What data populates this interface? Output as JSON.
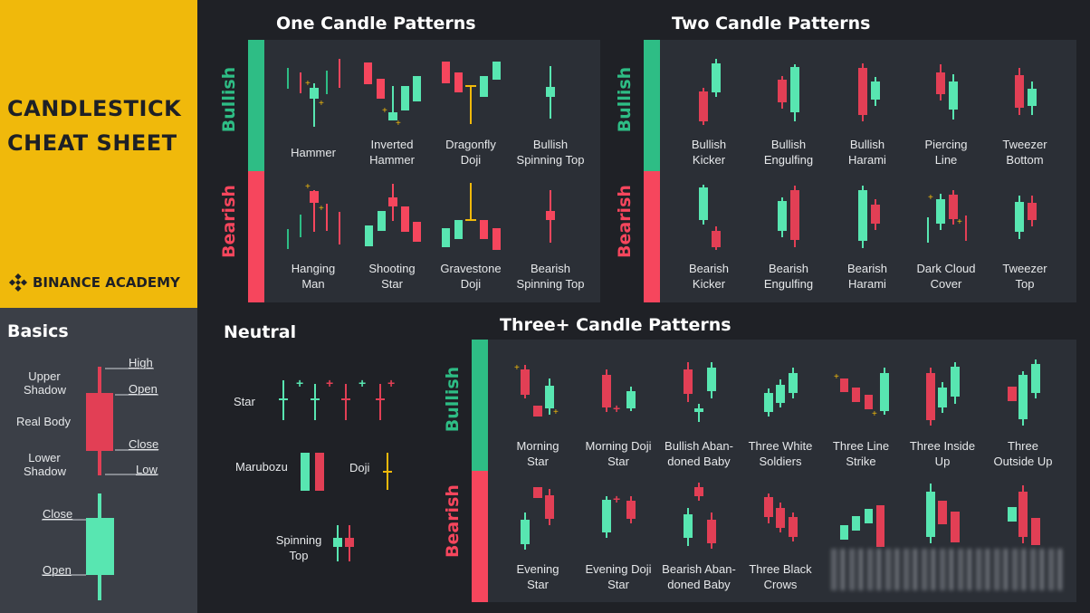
{
  "header": {
    "title_line1": "CANDLESTICK",
    "title_line2": "CHEAT SHEET",
    "brand": "BINANCE ACADEMY",
    "brand_icon": "binance-diamond-icon"
  },
  "colors": {
    "bull": "#2ebd85",
    "bear": "#f6465d",
    "accent": "#f0b90b",
    "bull_light": "#58e6b1",
    "bear_light": "#e23f55"
  },
  "basics": {
    "title": "Basics",
    "bearish_labels": {
      "upper_shadow": "Upper\nShadow",
      "real_body": "Real Body",
      "lower_shadow": "Lower\nShadow",
      "high": "High",
      "open": "Open",
      "close": "Close",
      "low": "Low"
    },
    "bullish_labels": {
      "close": "Close",
      "open": "Open"
    }
  },
  "one_candle": {
    "title": "One Candle Patterns",
    "bullish_label": "Bullish",
    "bearish_label": "Bearish",
    "bullish": [
      "Hammer",
      "Inverted\nHammer",
      "Dragonfly\nDoji",
      "Bullish\nSpinning Top"
    ],
    "bearish": [
      "Hanging\nMan",
      "Shooting\nStar",
      "Gravestone\nDoji",
      "Bearish\nSpinning Top"
    ]
  },
  "two_candle": {
    "title": "Two Candle Patterns",
    "bullish_label": "Bullish",
    "bearish_label": "Bearish",
    "bullish": [
      "Bullish\nKicker",
      "Bullish\nEngulfing",
      "Bullish\nHarami",
      "Piercing\nLine",
      "Tweezer\nBottom"
    ],
    "bearish": [
      "Bearish\nKicker",
      "Bearish\nEngulfing",
      "Bearish\nHarami",
      "Dark Cloud\nCover",
      "Tweezer\nTop"
    ]
  },
  "neutral": {
    "title": "Neutral",
    "items": {
      "star": "Star",
      "marubozu": "Marubozu",
      "doji": "Doji",
      "spinning_top": "Spinning\nTop"
    }
  },
  "three_candle": {
    "title": "Three+ Candle Patterns",
    "bullish_label": "Bullish",
    "bearish_label": "Bearish",
    "bullish": [
      "Morning\nStar",
      "Morning Doji\nStar",
      "Bullish Aban-\ndoned Baby",
      "Three White\nSoldiers",
      "Three Line\nStrike",
      "Three Inside\nUp",
      "Three\nOutside Up"
    ],
    "bearish": [
      "Evening\nStar",
      "Evening Doji\nStar",
      "Bearish Aban-\ndoned Baby",
      "Three Black\nCrows"
    ]
  }
}
